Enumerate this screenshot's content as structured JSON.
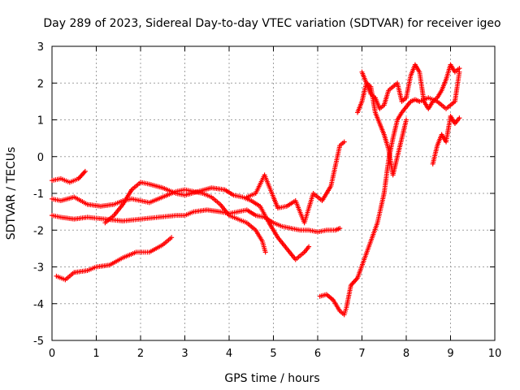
{
  "chart_data": {
    "type": "scatter",
    "title": "Day 289 of 2023, Sidereal Day-to-day VTEC variation (SDTVAR) for receiver igeo",
    "xlabel": "GPS time / hours",
    "ylabel": "SDTVAR / TECUs",
    "xlim": [
      0,
      10
    ],
    "ylim": [
      -5,
      3
    ],
    "x_ticks": [
      0,
      1,
      2,
      3,
      4,
      5,
      6,
      7,
      8,
      9,
      10
    ],
    "y_ticks": [
      -5,
      -4,
      -3,
      -2,
      -1,
      0,
      1,
      2,
      3
    ],
    "grid": true,
    "marker": "plus",
    "color": "#ff0000",
    "series": [
      {
        "x": [
          0.0,
          0.2,
          0.4,
          0.6,
          0.75
        ],
        "y": [
          -0.65,
          -0.6,
          -0.7,
          -0.6,
          -0.4
        ]
      },
      {
        "x": [
          0.0,
          0.2,
          0.5,
          0.8,
          1.1,
          1.4,
          1.6,
          1.8,
          2.0,
          2.2,
          2.5,
          2.8,
          3.0,
          3.2,
          3.4,
          3.6,
          3.8,
          4.0,
          4.2,
          4.4,
          4.6,
          4.75,
          4.82
        ],
        "y": [
          -1.15,
          -1.2,
          -1.1,
          -1.3,
          -1.35,
          -1.3,
          -1.2,
          -1.15,
          -1.2,
          -1.25,
          -1.1,
          -0.95,
          -0.9,
          -0.95,
          -1.0,
          -1.1,
          -1.3,
          -1.6,
          -1.7,
          -1.8,
          -2.0,
          -2.3,
          -2.6
        ]
      },
      {
        "x": [
          0.0,
          0.2,
          0.5,
          0.8,
          1.2,
          1.6,
          2.0,
          2.4,
          2.8,
          3.0,
          3.2,
          3.5,
          3.8,
          4.0,
          4.2,
          4.4,
          4.6,
          4.8,
          5.0,
          5.2,
          5.4,
          5.6,
          5.8,
          6.0,
          6.2,
          6.4,
          6.5
        ],
        "y": [
          -1.6,
          -1.65,
          -1.7,
          -1.65,
          -1.7,
          -1.75,
          -1.7,
          -1.65,
          -1.6,
          -1.6,
          -1.5,
          -1.45,
          -1.5,
          -1.55,
          -1.5,
          -1.45,
          -1.6,
          -1.65,
          -1.8,
          -1.9,
          -1.95,
          -2.0,
          -2.0,
          -2.05,
          -2.0,
          -2.0,
          -1.95
        ]
      },
      {
        "x": [
          0.1,
          0.3,
          0.5,
          0.8,
          1.0,
          1.3,
          1.6,
          1.9,
          2.2,
          2.5,
          2.7
        ],
        "y": [
          -3.25,
          -3.35,
          -3.15,
          -3.1,
          -3.0,
          -2.95,
          -2.75,
          -2.6,
          -2.6,
          -2.4,
          -2.2
        ]
      },
      {
        "x": [
          1.2,
          1.4,
          1.6,
          1.8,
          2.0,
          2.2,
          2.5,
          2.8,
          3.0,
          3.3,
          3.6,
          3.9,
          4.1,
          4.3,
          4.5,
          4.7,
          4.9,
          5.1,
          5.3,
          5.5,
          5.7,
          5.8
        ],
        "y": [
          -1.8,
          -1.6,
          -1.3,
          -0.9,
          -0.7,
          -0.75,
          -0.85,
          -1.0,
          -1.05,
          -0.95,
          -0.85,
          -0.9,
          -1.05,
          -1.1,
          -1.2,
          -1.35,
          -1.8,
          -2.2,
          -2.5,
          -2.8,
          -2.6,
          -2.45
        ]
      },
      {
        "x": [
          4.4,
          4.6,
          4.8,
          5.0,
          5.1,
          5.3,
          5.5,
          5.7,
          5.9,
          6.1,
          6.3,
          6.5,
          6.6
        ],
        "y": [
          -1.1,
          -1.0,
          -0.5,
          -1.1,
          -1.4,
          -1.35,
          -1.2,
          -1.8,
          -1.0,
          -1.2,
          -0.8,
          0.3,
          0.4
        ]
      },
      {
        "x": [
          6.05,
          6.2,
          6.35,
          6.5,
          6.6,
          6.65,
          6.75,
          6.9,
          7.05,
          7.2,
          7.35,
          7.5,
          7.6,
          7.7,
          7.8,
          7.9,
          8.0,
          8.1,
          8.2,
          8.3,
          8.5,
          8.7,
          8.9,
          9.1,
          9.2
        ],
        "y": [
          -3.8,
          -3.75,
          -3.9,
          -4.2,
          -4.3,
          -4.1,
          -3.5,
          -3.3,
          -2.8,
          -2.3,
          -1.8,
          -1.0,
          -0.1,
          0.5,
          1.0,
          1.2,
          1.35,
          1.5,
          1.55,
          1.5,
          1.6,
          1.5,
          1.3,
          1.5,
          2.3
        ]
      },
      {
        "x": [
          6.9,
          7.0,
          7.1,
          7.2,
          7.3,
          7.4,
          7.5,
          7.6,
          7.7,
          7.8,
          7.9,
          8.0
        ],
        "y": [
          1.2,
          1.5,
          2.0,
          1.9,
          1.2,
          0.9,
          0.6,
          0.2,
          -0.5,
          0.0,
          0.5,
          1.0
        ]
      },
      {
        "x": [
          7.0,
          7.1,
          7.2,
          7.3,
          7.4,
          7.5,
          7.6,
          7.7,
          7.8,
          7.9,
          8.0,
          8.1,
          8.2,
          8.3,
          8.4,
          8.5,
          8.6,
          8.7,
          8.8,
          8.9,
          9.0,
          9.1,
          9.2
        ],
        "y": [
          2.3,
          2.0,
          1.7,
          1.6,
          1.3,
          1.4,
          1.8,
          1.9,
          2.0,
          1.5,
          1.6,
          2.2,
          2.5,
          2.3,
          1.5,
          1.3,
          1.5,
          1.6,
          1.8,
          2.1,
          2.5,
          2.3,
          2.4
        ]
      },
      {
        "x": [
          8.6,
          8.7,
          8.8,
          8.9,
          9.0,
          9.1,
          9.2
        ],
        "y": [
          -0.2,
          0.3,
          0.6,
          0.4,
          1.1,
          0.9,
          1.05
        ]
      }
    ]
  }
}
